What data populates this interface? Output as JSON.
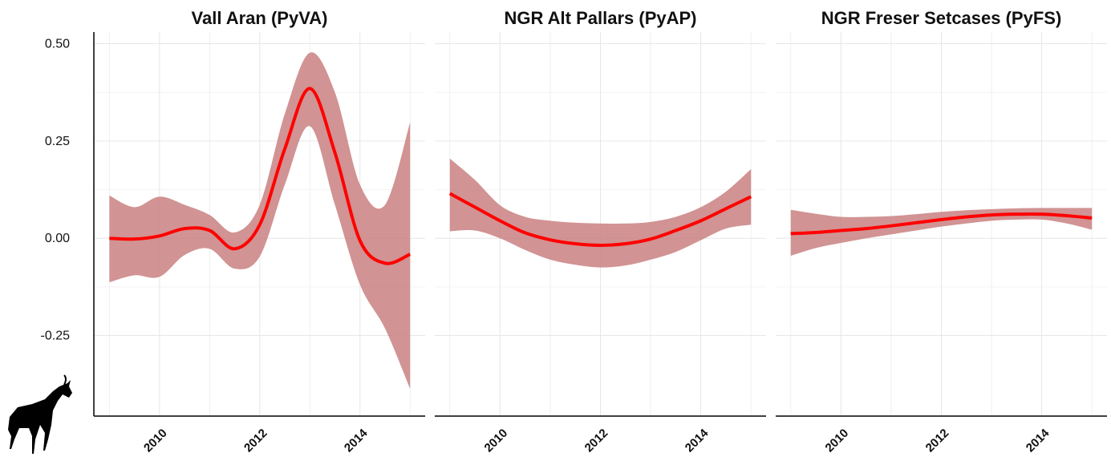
{
  "chart_data": [
    {
      "type": "line",
      "title": "Vall Aran (PyVA)",
      "x": [
        2009,
        2009.5,
        2010,
        2010.5,
        2011,
        2011.5,
        2012,
        2012.5,
        2013,
        2013.5,
        2014,
        2014.5,
        2015
      ],
      "series": [
        {
          "color": "#ff0000",
          "band_color": "#c98080",
          "values": [
            0,
            -0.002,
            0.006,
            0.025,
            0.02,
            -0.027,
            0.035,
            0.23,
            0.385,
            0.22,
            -0.006,
            -0.064,
            -0.041
          ],
          "upper": [
            0.11,
            0.08,
            0.107,
            0.086,
            0.06,
            0.015,
            0.086,
            0.32,
            0.477,
            0.375,
            0.138,
            0.086,
            0.298
          ],
          "lower": [
            -0.113,
            -0.095,
            -0.099,
            -0.043,
            -0.027,
            -0.078,
            -0.047,
            0.138,
            0.288,
            0.086,
            -0.119,
            -0.232,
            -0.387
          ]
        }
      ],
      "xlim": [
        2008.69,
        2015.3
      ],
      "xticks": [
        2010,
        2012,
        2014
      ],
      "ylim": [
        -0.457,
        0.53
      ],
      "yticks": [
        {
          "value": -0.25,
          "label": "-0.25"
        },
        {
          "value": 0,
          "label": "0.00"
        },
        {
          "value": 0.25,
          "label": "0.25"
        },
        {
          "value": 0.5,
          "label": "0.50"
        }
      ],
      "grid": true
    },
    {
      "type": "line",
      "title": "NGR Alt Pallars (PyAP)",
      "x": [
        2009,
        2009.5,
        2010,
        2010.5,
        2011,
        2011.5,
        2012,
        2012.5,
        2013,
        2013.5,
        2014,
        2014.5,
        2015
      ],
      "series": [
        {
          "color": "#ff0000",
          "band_color": "#c98080",
          "values": [
            0.115,
            0.08,
            0.045,
            0.014,
            -0.004,
            -0.014,
            -0.018,
            -0.014,
            -0.002,
            0.02,
            0.045,
            0.076,
            0.107
          ],
          "upper": [
            0.205,
            0.15,
            0.085,
            0.055,
            0.045,
            0.04,
            0.038,
            0.038,
            0.042,
            0.055,
            0.08,
            0.12,
            0.178
          ],
          "lower": [
            0.018,
            0.02,
            0,
            -0.03,
            -0.055,
            -0.068,
            -0.075,
            -0.07,
            -0.055,
            -0.035,
            -0.005,
            0.025,
            0.035
          ]
        }
      ],
      "xlim": [
        2008.7,
        2015.3
      ],
      "xticks": [
        2010,
        2012,
        2014
      ],
      "ylim": [
        -0.457,
        0.53
      ],
      "grid": true
    },
    {
      "type": "line",
      "title": "NGR Freser Setcases (PyFS)",
      "x": [
        2009,
        2009.5,
        2010,
        2010.5,
        2011,
        2011.5,
        2012,
        2012.5,
        2013,
        2013.5,
        2014,
        2014.5,
        2015
      ],
      "series": [
        {
          "color": "#ff0000",
          "band_color": "#c98080",
          "values": [
            0.012,
            0.015,
            0.02,
            0.025,
            0.032,
            0.04,
            0.048,
            0.055,
            0.06,
            0.062,
            0.062,
            0.058,
            0.052
          ],
          "upper": [
            0.073,
            0.063,
            0.055,
            0.055,
            0.057,
            0.062,
            0.068,
            0.072,
            0.075,
            0.077,
            0.078,
            0.078,
            0.078
          ],
          "lower": [
            -0.045,
            -0.025,
            -0.012,
            0,
            0.01,
            0.02,
            0.03,
            0.038,
            0.045,
            0.048,
            0.048,
            0.038,
            0.022
          ]
        }
      ],
      "xlim": [
        2008.7,
        2015.3
      ],
      "xticks": [
        2010,
        2012,
        2014
      ],
      "ylim": [
        -0.457,
        0.53
      ],
      "grid": true
    }
  ]
}
